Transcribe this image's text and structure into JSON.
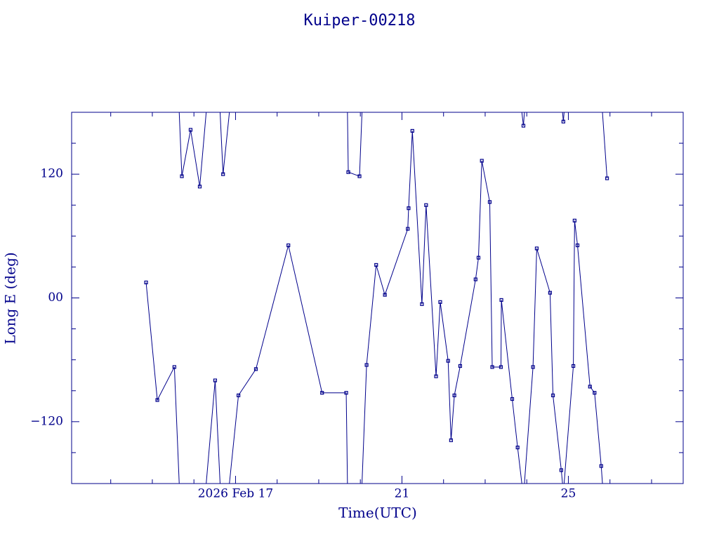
{
  "chart_data": {
    "type": "line",
    "title": "Kuiper-00218",
    "xlabel": "Time(UTC)",
    "ylabel": "Long E (deg)",
    "color": "#00008b",
    "wrap": 360,
    "xlim": [
      13.06,
      27.76
    ],
    "xticks": [
      {
        "value": 17,
        "label": "2026 Feb 17"
      },
      {
        "value": 21,
        "label": "21"
      },
      {
        "value": 25,
        "label": "25"
      }
    ],
    "xminorticks": [
      14,
      15,
      16,
      18,
      19,
      20,
      22,
      23,
      24,
      26,
      27
    ],
    "ylim": [
      -180,
      180
    ],
    "yticks": [
      {
        "value": -120,
        "label": "−120"
      },
      {
        "value": 0,
        "label": "00"
      },
      120
    ],
    "yminorticks": [
      -150,
      -90,
      -60,
      -30,
      30,
      60,
      90,
      150
    ],
    "series": [
      {
        "name": "Kuiper-00218",
        "color": "#00008b",
        "x": [
          14.85,
          15.12,
          15.53,
          15.71,
          15.92,
          16.14,
          16.51,
          16.7,
          17.07,
          17.49,
          18.27,
          19.08,
          19.66,
          19.71,
          19.98,
          20.15,
          20.38,
          20.59,
          21.14,
          21.16,
          21.25,
          21.48,
          21.58,
          21.82,
          21.92,
          22.11,
          22.18,
          22.26,
          22.4,
          22.77,
          22.84,
          22.92,
          23.11,
          23.17,
          23.38,
          23.39,
          23.65,
          23.78,
          23.92,
          24.15,
          24.24,
          24.56,
          24.63,
          24.83,
          24.88,
          25.12,
          25.15,
          25.22,
          25.52,
          25.63,
          25.79,
          25.93
        ],
        "values": [
          15,
          -99,
          -67,
          118,
          163,
          108,
          -80,
          120,
          -94.5,
          -69,
          51,
          -92,
          -92,
          122,
          118,
          -65,
          32,
          3,
          67,
          87,
          162,
          -6,
          90,
          -76,
          -4,
          -61,
          -138,
          -94.5,
          -66,
          18,
          39,
          133,
          93,
          -67,
          -67,
          -2,
          -98,
          -145,
          167,
          -67,
          48,
          5,
          -94.5,
          -167,
          171,
          -66,
          75,
          51,
          -86,
          -92,
          -163,
          116
        ]
      }
    ]
  }
}
